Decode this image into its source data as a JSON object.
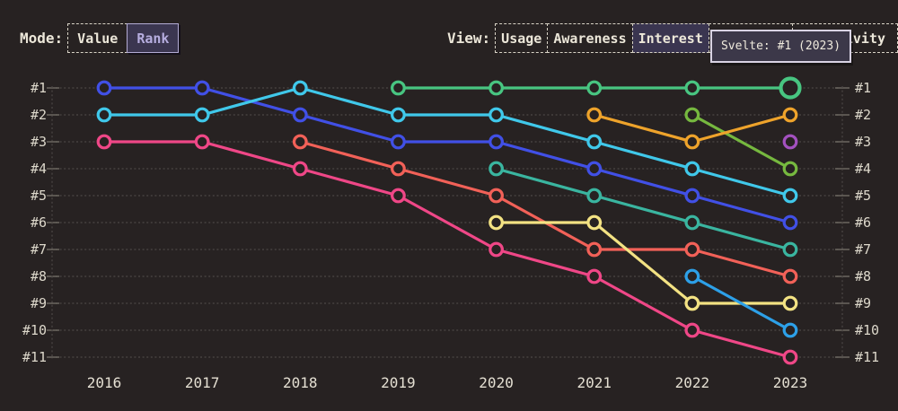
{
  "header": {
    "mode": {
      "label": "Mode:",
      "options": [
        {
          "label": "Value",
          "selected": false
        },
        {
          "label": "Rank",
          "selected": true
        }
      ]
    },
    "view": {
      "label": "View:",
      "options": [
        {
          "label": "Usage",
          "selected": false
        },
        {
          "label": "Awareness",
          "selected": false
        },
        {
          "label": "Interest",
          "selected": true
        },
        {
          "label": "",
          "selected": false
        },
        {
          "label": "Positivity",
          "selected": false
        }
      ]
    }
  },
  "tooltip": {
    "text": "Svelte: #1 (2023)"
  },
  "theme": {
    "background": "#272222",
    "text": "#ece7d9",
    "axis_text": "#ddd8cb",
    "grid": "#4c4745",
    "tick": "#8d887e",
    "selected_fill": "#3a3550",
    "rank_button_bg": "#3b3650",
    "rank_button_text": "#b6addf",
    "tooltip_bg": "#3c3849",
    "tooltip_border": "#d9d3e4"
  },
  "chart_data": {
    "type": "line",
    "variant": "bump-rank-chart",
    "x": [
      2016,
      2017,
      2018,
      2019,
      2020,
      2021,
      2022,
      2023
    ],
    "yticks": [
      "#1",
      "#2",
      "#3",
      "#4",
      "#5",
      "#6",
      "#7",
      "#8",
      "#9",
      "#10",
      "#11"
    ],
    "ylim": [
      1,
      11
    ],
    "grid": "dotted-horizontal",
    "legend": "none",
    "series": [
      {
        "name": "series-pink",
        "color": "#ef4787",
        "points": [
          [
            2016,
            3
          ],
          [
            2017,
            3
          ],
          [
            2018,
            4
          ],
          [
            2019,
            5
          ],
          [
            2020,
            7
          ],
          [
            2021,
            8
          ],
          [
            2022,
            10
          ],
          [
            2023,
            11
          ]
        ]
      },
      {
        "name": "series-coral",
        "color": "#f26158",
        "points": [
          [
            2018,
            3
          ],
          [
            2019,
            4
          ],
          [
            2020,
            5
          ],
          [
            2021,
            7
          ],
          [
            2022,
            7
          ],
          [
            2023,
            8
          ]
        ]
      },
      {
        "name": "series-yellow",
        "color": "#f3e283",
        "points": [
          [
            2020,
            6
          ],
          [
            2021,
            6
          ],
          [
            2022,
            9
          ],
          [
            2023,
            9
          ]
        ]
      },
      {
        "name": "series-sky",
        "color": "#2da0e8",
        "points": [
          [
            2022,
            8
          ],
          [
            2023,
            10
          ]
        ]
      },
      {
        "name": "series-blue",
        "color": "#4150e6",
        "points": [
          [
            2016,
            1
          ],
          [
            2017,
            1
          ],
          [
            2018,
            2
          ],
          [
            2019,
            3
          ],
          [
            2020,
            3
          ],
          [
            2021,
            4
          ],
          [
            2022,
            5
          ],
          [
            2023,
            6
          ]
        ]
      },
      {
        "name": "series-cyan",
        "color": "#40c8ea",
        "points": [
          [
            2016,
            2
          ],
          [
            2017,
            2
          ],
          [
            2018,
            1
          ],
          [
            2019,
            2
          ],
          [
            2020,
            2
          ],
          [
            2021,
            3
          ],
          [
            2022,
            4
          ],
          [
            2023,
            5
          ]
        ]
      },
      {
        "name": "series-teal",
        "color": "#3ab5a0",
        "points": [
          [
            2020,
            4
          ],
          [
            2021,
            5
          ],
          [
            2022,
            6
          ],
          [
            2023,
            7
          ]
        ]
      },
      {
        "name": "series-lime",
        "color": "#76b83f",
        "points": [
          [
            2022,
            2
          ],
          [
            2023,
            4
          ]
        ]
      },
      {
        "name": "series-orange",
        "color": "#eea32b",
        "points": [
          [
            2021,
            2
          ],
          [
            2022,
            3
          ],
          [
            2023,
            2
          ]
        ]
      },
      {
        "name": "series-purple",
        "color": "#a351bf",
        "points": [
          [
            2023,
            3
          ]
        ]
      },
      {
        "name": "svelte",
        "color": "#48c581",
        "points": [
          [
            2019,
            1
          ],
          [
            2020,
            1
          ],
          [
            2021,
            1
          ],
          [
            2022,
            1
          ],
          [
            2023,
            1
          ]
        ]
      }
    ],
    "highlight": {
      "series": "svelte",
      "year": 2023,
      "rank": 1
    }
  }
}
